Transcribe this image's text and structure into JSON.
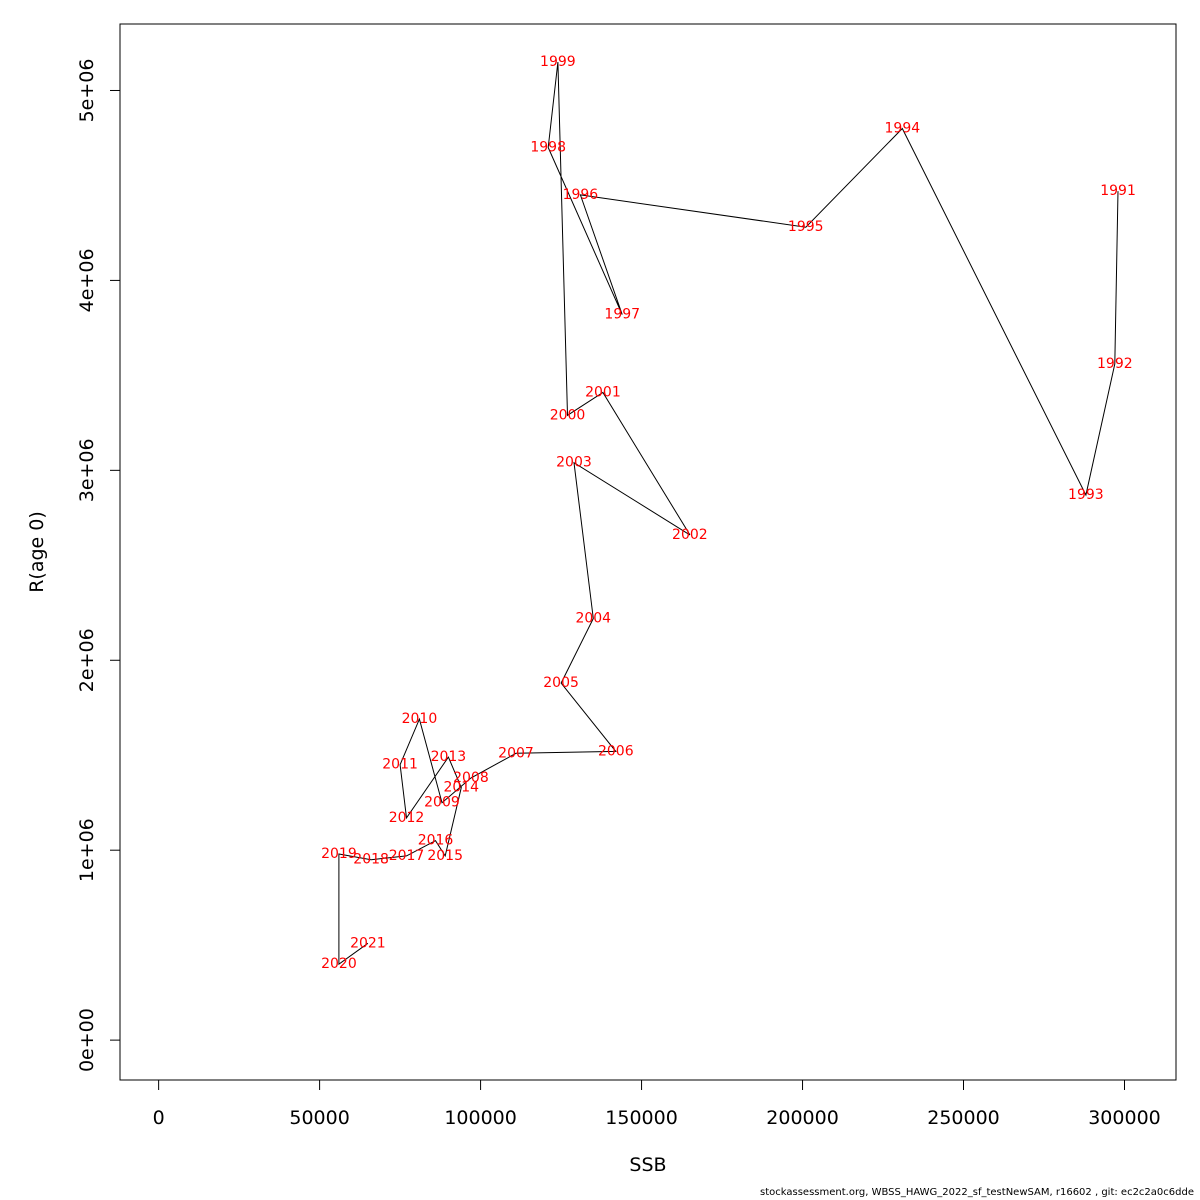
{
  "chart_data": {
    "type": "line",
    "xlabel": "SSB",
    "ylabel": "R(age 0)",
    "xlim": [
      -12000,
      316000
    ],
    "ylim": [
      -210000,
      5350000
    ],
    "x_ticks": [
      0,
      50000,
      100000,
      150000,
      200000,
      250000,
      300000
    ],
    "x_tick_labels": [
      "0",
      "50000",
      "100000",
      "150000",
      "200000",
      "250000",
      "300000"
    ],
    "y_ticks": [
      0,
      1000000,
      2000000,
      3000000,
      4000000,
      5000000
    ],
    "y_tick_labels": [
      "0e+00",
      "1e+06",
      "2e+06",
      "3e+06",
      "4e+06",
      "5e+06"
    ],
    "grid": false,
    "line_color": "#000000",
    "label_color": "#ff0000",
    "points": [
      {
        "year": "1991",
        "ssb": 298000,
        "r": 4470000
      },
      {
        "year": "1992",
        "ssb": 297000,
        "r": 3560000
      },
      {
        "year": "1993",
        "ssb": 288000,
        "r": 2870000
      },
      {
        "year": "1994",
        "ssb": 231000,
        "r": 4800000
      },
      {
        "year": "1995",
        "ssb": 201000,
        "r": 4280000
      },
      {
        "year": "1996",
        "ssb": 131000,
        "r": 4450000
      },
      {
        "year": "1997",
        "ssb": 144000,
        "r": 3820000
      },
      {
        "year": "1998",
        "ssb": 121000,
        "r": 4700000
      },
      {
        "year": "1999",
        "ssb": 124000,
        "r": 5150000
      },
      {
        "year": "2000",
        "ssb": 127000,
        "r": 3290000
      },
      {
        "year": "2001",
        "ssb": 138000,
        "r": 3410000
      },
      {
        "year": "2002",
        "ssb": 165000,
        "r": 2660000
      },
      {
        "year": "2003",
        "ssb": 129000,
        "r": 3040000
      },
      {
        "year": "2004",
        "ssb": 135000,
        "r": 2220000
      },
      {
        "year": "2005",
        "ssb": 125000,
        "r": 1880000
      },
      {
        "year": "2006",
        "ssb": 142000,
        "r": 1520000
      },
      {
        "year": "2007",
        "ssb": 111000,
        "r": 1510000
      },
      {
        "year": "2008",
        "ssb": 97000,
        "r": 1380000
      },
      {
        "year": "2009",
        "ssb": 88000,
        "r": 1250000
      },
      {
        "year": "2010",
        "ssb": 81000,
        "r": 1690000
      },
      {
        "year": "2011",
        "ssb": 75000,
        "r": 1450000
      },
      {
        "year": "2012",
        "ssb": 77000,
        "r": 1170000
      },
      {
        "year": "2013",
        "ssb": 90000,
        "r": 1490000
      },
      {
        "year": "2014",
        "ssb": 94000,
        "r": 1330000
      },
      {
        "year": "2015",
        "ssb": 89000,
        "r": 970000
      },
      {
        "year": "2016",
        "ssb": 86000,
        "r": 1050000
      },
      {
        "year": "2017",
        "ssb": 77000,
        "r": 970000
      },
      {
        "year": "2018",
        "ssb": 66000,
        "r": 950000
      },
      {
        "year": "2019",
        "ssb": 56000,
        "r": 980000
      },
      {
        "year": "2020",
        "ssb": 56000,
        "r": 400000
      },
      {
        "year": "2021",
        "ssb": 65000,
        "r": 510000
      }
    ]
  },
  "footer_text": "stockassessment.org, WBSS_HAWG_2022_sf_testNewSAM, r16602 , git: ec2c2a0c6dde"
}
